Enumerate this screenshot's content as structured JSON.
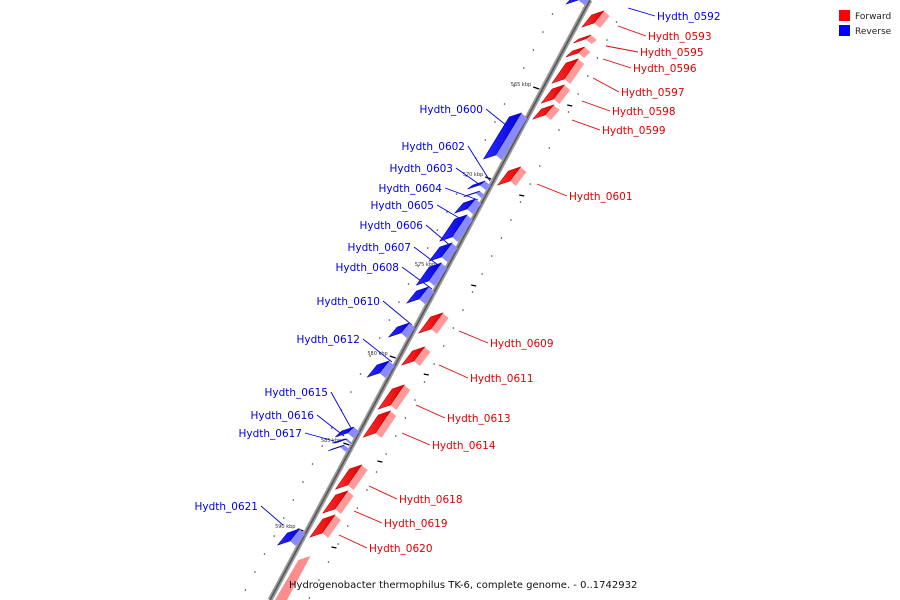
{
  "legend": [
    {
      "label": "Forward",
      "color": "#ff0000"
    },
    {
      "label": "Reverse",
      "color": "#0000ff"
    }
  ],
  "caption": "Hydrogenobacter thermophilus TK-6, complete genome. - 0..1742932",
  "ticks": [
    {
      "label": "565 kbp"
    },
    {
      "label": "570 kbp"
    },
    {
      "label": "575 kbp"
    },
    {
      "label": "580 kbp"
    },
    {
      "label": "585 kbp"
    },
    {
      "label": "590 kbp"
    }
  ],
  "genes": [
    {
      "name": "Hydth_0592",
      "strand": "reverse"
    },
    {
      "name": "Hydth_0593",
      "strand": "forward"
    },
    {
      "name": "Hydth_0595",
      "strand": "forward"
    },
    {
      "name": "Hydth_0596",
      "strand": "forward"
    },
    {
      "name": "Hydth_0597",
      "strand": "forward"
    },
    {
      "name": "Hydth_0598",
      "strand": "forward"
    },
    {
      "name": "Hydth_0599",
      "strand": "forward"
    },
    {
      "name": "Hydth_0600",
      "strand": "reverse"
    },
    {
      "name": "Hydth_0601",
      "strand": "forward"
    },
    {
      "name": "Hydth_0602",
      "strand": "reverse"
    },
    {
      "name": "Hydth_0603",
      "strand": "reverse"
    },
    {
      "name": "Hydth_0604",
      "strand": "reverse"
    },
    {
      "name": "Hydth_0605",
      "strand": "reverse"
    },
    {
      "name": "Hydth_0606",
      "strand": "reverse"
    },
    {
      "name": "Hydth_0607",
      "strand": "reverse"
    },
    {
      "name": "Hydth_0608",
      "strand": "reverse"
    },
    {
      "name": "Hydth_0609",
      "strand": "forward"
    },
    {
      "name": "Hydth_0610",
      "strand": "reverse"
    },
    {
      "name": "Hydth_0611",
      "strand": "forward"
    },
    {
      "name": "Hydth_0612",
      "strand": "reverse"
    },
    {
      "name": "Hydth_0613",
      "strand": "forward"
    },
    {
      "name": "Hydth_0614",
      "strand": "forward"
    },
    {
      "name": "Hydth_0615",
      "strand": "reverse"
    },
    {
      "name": "Hydth_0616",
      "strand": "reverse"
    },
    {
      "name": "Hydth_0617",
      "strand": "reverse"
    },
    {
      "name": "Hydth_0618",
      "strand": "forward"
    },
    {
      "name": "Hydth_0619",
      "strand": "forward"
    },
    {
      "name": "Hydth_0620",
      "strand": "forward"
    },
    {
      "name": "Hydth_0621",
      "strand": "reverse"
    }
  ]
}
